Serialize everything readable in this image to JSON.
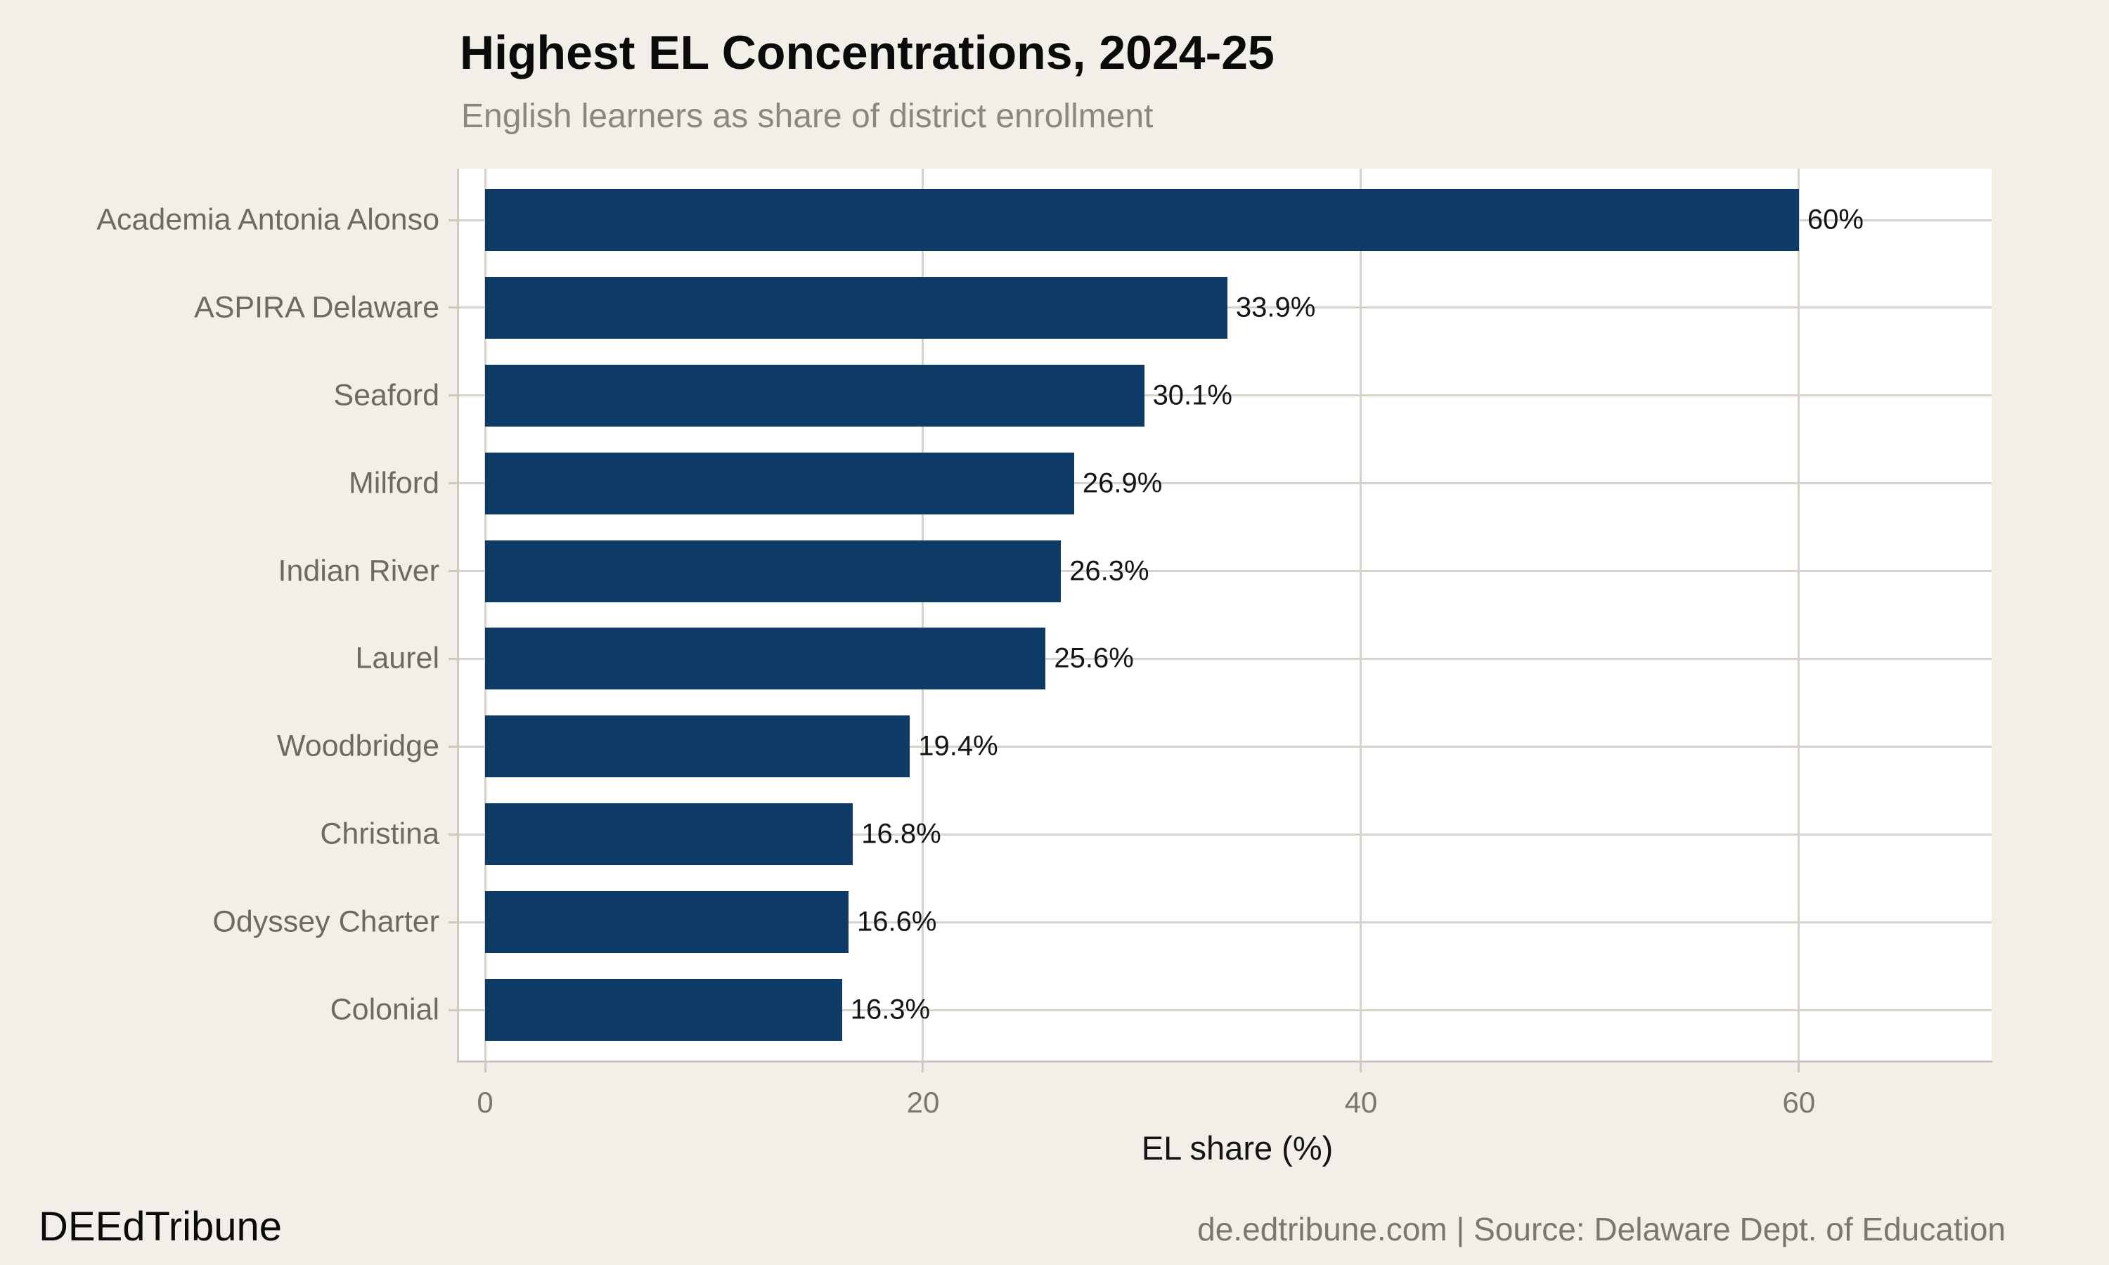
{
  "colors": {
    "background": "#f2efe9",
    "panel": "#ffffff",
    "bar": "#0e3a66",
    "gridline": "#d8d2c9",
    "axis_line": "#cfc9bf",
    "title": "#0b0b0b",
    "subtitle": "#8b8780",
    "category_label": "#6d6a64",
    "tick_label": "#7b766f",
    "value_label": "#141414"
  },
  "chart_data": {
    "type": "bar",
    "orientation": "horizontal",
    "title": "Highest EL Concentrations, 2024-25",
    "subtitle": "English learners as share of district enrollment",
    "xlabel": "EL share (%)",
    "ylabel": "",
    "categories": [
      "Academia Antonia Alonso",
      "ASPIRA Delaware",
      "Seaford",
      "Milford",
      "Indian River",
      "Laurel",
      "Woodbridge",
      "Christina",
      "Odyssey Charter",
      "Colonial"
    ],
    "values": [
      60,
      33.9,
      30.1,
      26.9,
      26.3,
      25.6,
      19.4,
      16.8,
      16.6,
      16.3
    ],
    "value_labels": [
      "60%",
      "33.9%",
      "30.1%",
      "26.9%",
      "26.3%",
      "25.6%",
      "19.4%",
      "16.8%",
      "16.6%",
      "16.3%"
    ],
    "xticks": [
      0,
      20,
      40,
      60
    ],
    "xtick_labels": [
      "0",
      "20",
      "40",
      "60"
    ],
    "xlim": [
      0,
      68.8
    ],
    "grid": true,
    "legend": "none"
  },
  "footer": {
    "brand": "DEEdTribune",
    "source": "de.edtribune.com | Source: Delaware Dept. of Education"
  }
}
